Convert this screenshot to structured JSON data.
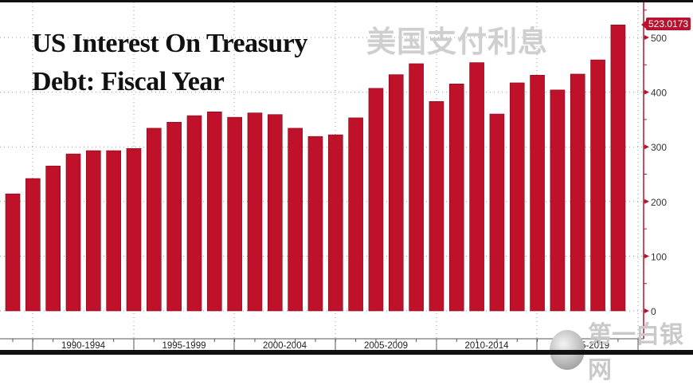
{
  "chart_data": {
    "type": "bar",
    "title": "US Interest On Treasury Debt: Fiscal Year",
    "title_lines": [
      "US Interest On Treasury",
      "Debt: Fiscal Year"
    ],
    "watermark": "美国支付利息",
    "source_watermark": "第一白银网",
    "xlabel": "",
    "ylabel": "",
    "x": [
      1989,
      1990,
      1991,
      1992,
      1993,
      1994,
      1995,
      1996,
      1997,
      1998,
      1999,
      2000,
      2001,
      2002,
      2003,
      2004,
      2005,
      2006,
      2007,
      2008,
      2009,
      2010,
      2011,
      2012,
      2013,
      2014,
      2015,
      2016,
      2017,
      2018,
      2019
    ],
    "values": [
      214,
      242,
      265,
      287,
      293,
      293,
      297,
      334,
      345,
      357,
      364,
      354,
      362,
      359,
      334,
      319,
      322,
      353,
      407,
      432,
      452,
      383,
      415,
      454,
      360,
      417,
      431,
      404,
      433,
      459,
      523.0173
    ],
    "x_group_labels": [
      "1990-1994",
      "1995-1999",
      "2000-2004",
      "2005-2009",
      "2010-2014",
      "2015-2019"
    ],
    "y_ticks": [
      0,
      100,
      200,
      300,
      400,
      500
    ],
    "ylim": [
      0,
      545
    ],
    "last_value_label": "523.0173",
    "grid": true,
    "legend": "none",
    "y_axis_position": "right",
    "colors": {
      "bar": "#c0112b",
      "bar_edge": "#7a0a1b",
      "axis": "#b8132e",
      "grid": "#9a9a9a",
      "tag": "#b8132e"
    }
  }
}
